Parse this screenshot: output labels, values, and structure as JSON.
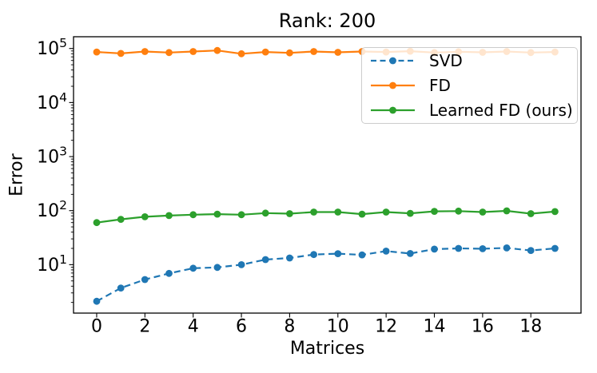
{
  "chart_data": {
    "type": "line",
    "title": "Rank: 200",
    "xlabel": "Matrices",
    "ylabel": "Error",
    "yscale": "log",
    "grid": false,
    "legend_position": "upper right",
    "xlim": [
      -0.96,
      20.08
    ],
    "ylim": [
      1.27,
      165000
    ],
    "xticks": [
      0,
      2,
      4,
      6,
      8,
      10,
      12,
      14,
      16,
      18
    ],
    "ytick_base": 10,
    "ytick_exponents": [
      1,
      2,
      3,
      4,
      5
    ],
    "x": [
      0,
      1,
      2,
      3,
      4,
      5,
      6,
      7,
      8,
      9,
      10,
      11,
      12,
      13,
      14,
      15,
      16,
      17,
      18,
      19
    ],
    "series": [
      {
        "name": "SVD",
        "color": "#1f77b4",
        "line_style": "dashed",
        "marker": "circle",
        "values": [
          2.1,
          3.7,
          5.3,
          6.9,
          8.6,
          8.9,
          10.0,
          12.4,
          13.3,
          15.4,
          16.0,
          15.2,
          17.8,
          16.1,
          19.4,
          20.0,
          19.7,
          20.4,
          18.3,
          20.0
        ]
      },
      {
        "name": "FD",
        "color": "#ff7f0e",
        "line_style": "solid",
        "marker": "circle",
        "values": [
          86000,
          81000,
          88000,
          84000,
          88000,
          92000,
          80000,
          86000,
          83000,
          88000,
          85000,
          88000,
          86000,
          89000,
          84000,
          87000,
          85000,
          88000,
          84000,
          86000
        ]
      },
      {
        "name": "Learned FD (ours)",
        "color": "#2ca02c",
        "line_style": "solid",
        "marker": "circle",
        "values": [
          60,
          69,
          77,
          81,
          84,
          86,
          84,
          90,
          88,
          94,
          94,
          86,
          94,
          89,
          97,
          98,
          94,
          99,
          88,
          96
        ]
      }
    ],
    "axis_color": "#000000",
    "legend_border_color": "#cccccc"
  }
}
